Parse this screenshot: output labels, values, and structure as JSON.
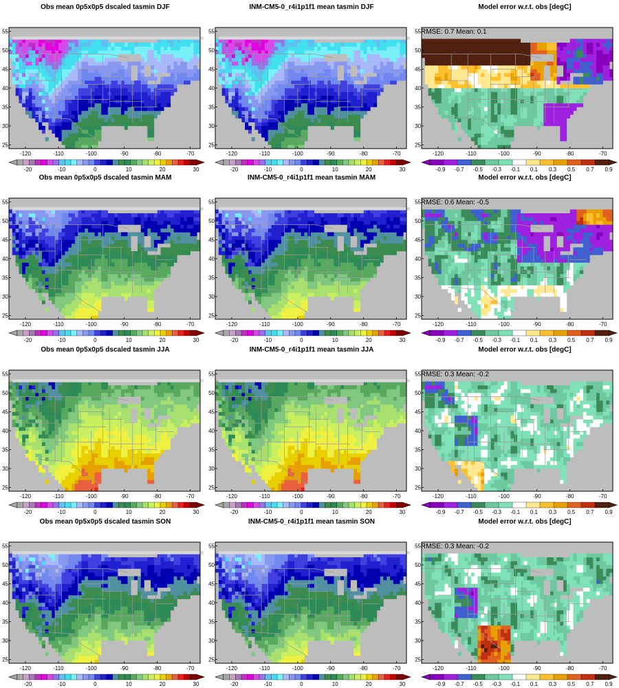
{
  "figure": {
    "rows": [
      {
        "season": "DJF",
        "panels": [
          {
            "kind": "obs",
            "title": "Obs mean 0p5x0p5 dscaled tasmin DJF",
            "field": "djf"
          },
          {
            "kind": "model",
            "title": "INM-CM5-0_r4i1p1f1 mean tasmin DJF",
            "field": "djf"
          },
          {
            "kind": "error",
            "title": "Model error w.r.t. obs [degC]",
            "stats": "RMSE: 0.7  Mean: 0.1",
            "field": "djf_err"
          }
        ]
      },
      {
        "season": "MAM",
        "panels": [
          {
            "kind": "obs",
            "title": "Obs mean 0p5x0p5 dscaled tasmin MAM",
            "field": "mam"
          },
          {
            "kind": "model",
            "title": "INM-CM5-0_r4i1p1f1 mean tasmin MAM",
            "field": "mam"
          },
          {
            "kind": "error",
            "title": "Model error w.r.t. obs [degC]",
            "stats": "RMSE: 0.6  Mean: -0.5",
            "field": "mam_err"
          }
        ]
      },
      {
        "season": "JJA",
        "panels": [
          {
            "kind": "obs",
            "title": "Obs mean 0p5x0p5 dscaled tasmin JJA",
            "field": "jja"
          },
          {
            "kind": "model",
            "title": "INM-CM5-0_r4i1p1f1 mean tasmin JJA",
            "field": "jja"
          },
          {
            "kind": "error",
            "title": "Model error w.r.t. obs [degC]",
            "stats": "RMSE: 0.3  Mean: -0.2",
            "field": "jja_err"
          }
        ]
      },
      {
        "season": "SON",
        "panels": [
          {
            "kind": "obs",
            "title": "Obs mean 0p5x0p5 dscaled tasmin SON",
            "field": "son"
          },
          {
            "kind": "model",
            "title": "INM-CM5-0_r4i1p1f1 mean tasmin SON",
            "field": "son"
          },
          {
            "kind": "error",
            "title": "Model error w.r.t. obs [degC]",
            "stats": "RMSE: 0.3  Mean: -0.2",
            "field": "son_err"
          }
        ]
      }
    ],
    "map_axes": {
      "lon_ticks": [
        -120,
        -110,
        -100,
        -90,
        -80,
        -70
      ],
      "lat_ticks": [
        25,
        30,
        35,
        40,
        45,
        50,
        55
      ],
      "lon_range": [
        -125,
        -67
      ],
      "lat_range": [
        24,
        56
      ]
    },
    "colorbars": {
      "temperature": {
        "labels": [
          "-20",
          "-10",
          "0",
          "10",
          "20",
          "30"
        ],
        "colors": [
          "#a8a8a8",
          "#c8a0c8",
          "#a878b8",
          "#c030c0",
          "#e000e0",
          "#d848e8",
          "#9870e8",
          "#60c0f0",
          "#40e0f0",
          "#78f0f8",
          "#a8b8f8",
          "#8898f0",
          "#7088f0",
          "#4040e0",
          "#2020d0",
          "#0000b0",
          "#5090a0",
          "#3c8c50",
          "#2e8b57",
          "#58a860",
          "#80c880",
          "#a8e070",
          "#c8f060",
          "#f0f040",
          "#e8d000",
          "#e8a000",
          "#e86040",
          "#e82020",
          "#c00000",
          "#800000"
        ]
      },
      "error": {
        "labels": [
          "-0.9",
          "-0.7",
          "-0.5",
          "-0.3",
          "-0.1",
          "0.1",
          "0.3",
          "0.5",
          "0.7",
          "0.9"
        ],
        "colors": [
          "#8800bb",
          "#a020e0",
          "#4060d0",
          "#3a8a5a",
          "#6ec8a0",
          "#80e0b8",
          "#ffffff",
          "#ffe890",
          "#ffc030",
          "#e8a000",
          "#e06020",
          "#c03010",
          "#502010"
        ]
      }
    }
  }
}
